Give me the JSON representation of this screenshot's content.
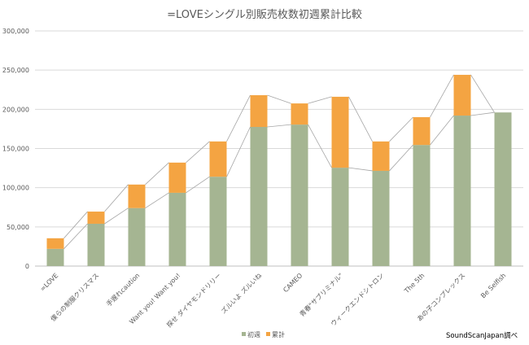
{
  "chart_data": {
    "type": "bar",
    "stacked": true,
    "title": "=LOVEシングル別販売枚数初週累計比較",
    "categories": [
      "=LOVE",
      "僕らの制服クリスマス",
      "手遅れcaution",
      "Want you! Want you!",
      "探せ ダイヤモンドリリー",
      "ズルいよ ズルいね",
      "CAMEO",
      "青春\"サブリミナル\"",
      "ウィークエンドシトロン",
      "The 5th",
      "あの子コンプレックス",
      "Be Selfish"
    ],
    "series": [
      {
        "name": "初週",
        "color": "#a5b592",
        "values": [
          22000,
          54000,
          74000,
          93500,
          114000,
          177500,
          180500,
          125500,
          121500,
          154500,
          192000,
          196000
        ]
      },
      {
        "name": "累計",
        "color": "#f4a442",
        "values": [
          13500,
          15500,
          30000,
          38500,
          45000,
          40500,
          27000,
          90500,
          37500,
          35500,
          52000,
          0
        ]
      }
    ],
    "series_lines": true,
    "yticks": [
      "0",
      "50,000",
      "100,000",
      "150,000",
      "200,000",
      "250,000",
      "300,000"
    ],
    "ylim": [
      0,
      300000
    ],
    "grid": true,
    "legend_position": "bottom",
    "annotation": "SoundScanJapan調べ"
  }
}
